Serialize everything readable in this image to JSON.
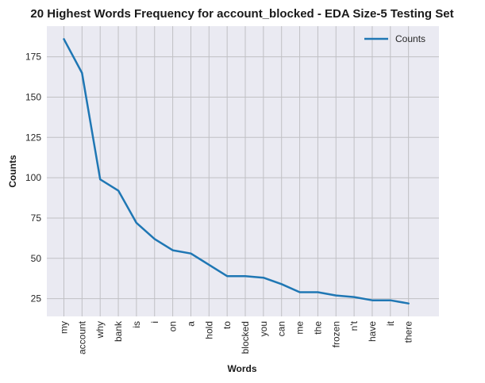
{
  "chart_data": {
    "type": "line",
    "title": "20 Highest Words Frequency for account_blocked - EDA Size-5 Testing Set",
    "xlabel": "Words",
    "ylabel": "Counts",
    "categories": [
      "my",
      "account",
      "why",
      "bank",
      "is",
      "i",
      "on",
      "a",
      "hold",
      "to",
      "blocked",
      "you",
      "can",
      "me",
      "the",
      "frozen",
      "n't",
      "have",
      "it",
      "there"
    ],
    "series": [
      {
        "name": "Counts",
        "values": [
          186,
          165,
          99,
          92,
          72,
          62,
          55,
          53,
          46,
          39,
          39,
          38,
          34,
          29,
          29,
          27,
          26,
          24,
          24,
          22
        ]
      }
    ],
    "yticks": [
      25,
      50,
      75,
      100,
      125,
      150,
      175
    ],
    "ylim": [
      14,
      194
    ],
    "grid": true,
    "legend": "top-right",
    "colors": {
      "line": "#1f77b4",
      "background": "#eaeaf2",
      "grid": "#c0c0c4"
    }
  }
}
